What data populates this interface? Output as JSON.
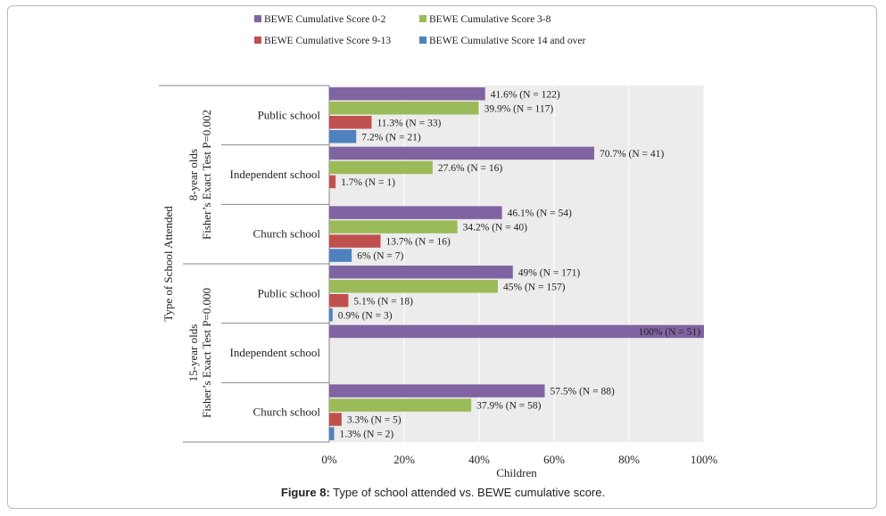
{
  "caption": {
    "label": "Figure 8:",
    "text": "Type of school attended vs. BEWE cumulative score."
  },
  "chart_data": {
    "type": "bar",
    "orientation": "horizontal",
    "title": "",
    "xlabel": "Children",
    "ylabel": "Type of School Attended",
    "xlim": [
      0,
      100
    ],
    "xticks": [
      "0%",
      "20%",
      "40%",
      "60%",
      "80%",
      "100%"
    ],
    "grid": true,
    "legend_position": "top",
    "series": [
      {
        "name": "BEWE Cumulative Score 0-2",
        "color": "#8064a2"
      },
      {
        "name": "BEWE Cumulative Score 3-8",
        "color": "#9bbb59"
      },
      {
        "name": "BEWE Cumulative Score 9-13",
        "color": "#c0504d"
      },
      {
        "name": "BEWE Cumulative Score 14 and over",
        "color": "#4f81bd"
      }
    ],
    "groups": [
      {
        "label": "8-year olds",
        "sublabel": "Fisher’s Exact Test P=0.002",
        "categories": [
          {
            "name": "Public school",
            "bars": [
              {
                "value": 41.6,
                "label": "41.6% (N = 122)"
              },
              {
                "value": 39.9,
                "label": "39.9% (N = 117)"
              },
              {
                "value": 11.3,
                "label": "11.3% (N = 33)"
              },
              {
                "value": 7.2,
                "label": "7.2% (N = 21)"
              }
            ]
          },
          {
            "name": "Independent school",
            "bars": [
              {
                "value": 70.7,
                "label": "70.7% (N = 41)"
              },
              {
                "value": 27.6,
                "label": "27.6% (N = 16)"
              },
              {
                "value": 1.7,
                "label": "1.7% (N = 1)"
              },
              null
            ]
          },
          {
            "name": "Church school",
            "bars": [
              {
                "value": 46.1,
                "label": "46.1% (N = 54)"
              },
              {
                "value": 34.2,
                "label": "34.2% (N = 40)"
              },
              {
                "value": 13.7,
                "label": "13.7% (N = 16)"
              },
              {
                "value": 6,
                "label": "6% (N = 7)"
              }
            ]
          }
        ]
      },
      {
        "label": "15-year olds",
        "sublabel": "Fisher’s Exact Test P=0.000",
        "categories": [
          {
            "name": "Public school",
            "bars": [
              {
                "value": 49,
                "label": "49% (N = 171)"
              },
              {
                "value": 45,
                "label": "45% (N = 157)"
              },
              {
                "value": 5.1,
                "label": "5.1% (N = 18)"
              },
              {
                "value": 0.9,
                "label": "0.9% (N = 3)"
              }
            ]
          },
          {
            "name": "Independent school",
            "bars": [
              {
                "value": 100,
                "label": "100% (N = 51)"
              },
              null,
              null,
              null
            ]
          },
          {
            "name": "Church school",
            "bars": [
              {
                "value": 57.5,
                "label": "57.5% (N = 88)"
              },
              {
                "value": 37.9,
                "label": "37.9% (N = 58)"
              },
              {
                "value": 3.3,
                "label": "3.3% (N = 5)"
              },
              {
                "value": 1.3,
                "label": "1.3% (N = 2)"
              }
            ]
          }
        ]
      }
    ]
  }
}
